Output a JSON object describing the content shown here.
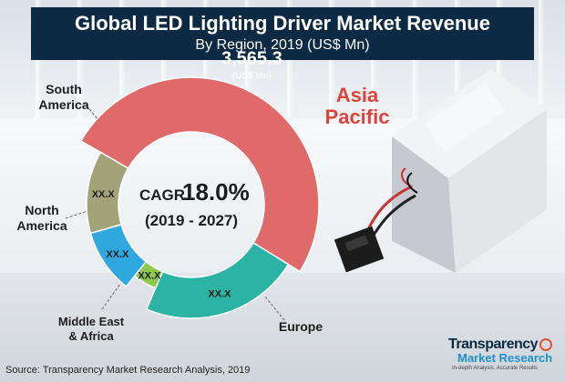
{
  "chart_data": {
    "type": "pie",
    "title": "Global LED Lighting Driver Market Revenue",
    "subtitle": "By Region, 2019 (US$ Mn)",
    "center": {
      "line1_prefix": "CAGR",
      "line1_value": "18.0%",
      "line2": "(2019 - 2027)"
    },
    "series": [
      {
        "category": "Asia Pacific",
        "value": 3565.3,
        "value_label": "3,565.3",
        "unit_label": "(US$ Mn)",
        "color": "#e06a6a",
        "label_lines": [
          "Asia",
          "Pacific"
        ]
      },
      {
        "category": "Europe",
        "value": 1600,
        "value_label": "XX.X",
        "color": "#2bb3a3",
        "label_lines": [
          "Europe"
        ]
      },
      {
        "category": "Middle East & Africa",
        "value": 300,
        "value_label": "XX.X",
        "color": "#8cc84b",
        "label_lines": [
          "Middle East",
          "& Africa"
        ]
      },
      {
        "category": "North America",
        "value": 700,
        "value_label": "XX.X",
        "color": "#2fa8e0",
        "label_lines": [
          "North",
          "America"
        ]
      },
      {
        "category": "South America",
        "value": 900,
        "value_label": "XX.X",
        "color": "#a3a37a",
        "label_lines": [
          "South",
          "America"
        ]
      }
    ]
  },
  "source": "Source: Transparency Market Research Analysis, 2019",
  "logo": {
    "main": "Transparency",
    "sub": "Market Research",
    "tag": "In-depth Analysis. Accurate Results"
  }
}
